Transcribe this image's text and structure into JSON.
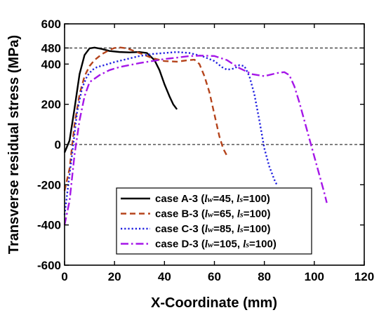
{
  "chart_data": {
    "type": "line",
    "xlabel": "X-Coordinate (mm)",
    "ylabel": "Transverse residual stress (MPa)",
    "xlim": [
      0,
      120
    ],
    "ylim": [
      -600,
      600
    ],
    "xticks": [
      0,
      20,
      40,
      60,
      80,
      100,
      120
    ],
    "yticks": [
      -600,
      -400,
      -200,
      0,
      200,
      400,
      480,
      600
    ],
    "xtick_labels": [
      "0",
      "20",
      "40",
      "60",
      "80",
      "100",
      "120"
    ],
    "ytick_labels": [
      "-600",
      "-400",
      "-200",
      "0",
      "200",
      "400",
      "480",
      "600"
    ],
    "reference_lines": [
      {
        "y": 480,
        "style": "dashed",
        "color": "#000000"
      },
      {
        "y": 0,
        "style": "dashed",
        "color": "#000000"
      }
    ],
    "legend_position": "bottom-right",
    "series": [
      {
        "name": "case A-3",
        "legend_lw": "45",
        "legend_ls": "100",
        "color": "#000000",
        "dash": "solid",
        "x": [
          0,
          2,
          4,
          6,
          8,
          10,
          12,
          15,
          18,
          22,
          26,
          30,
          33,
          36,
          38,
          40,
          42,
          43.5,
          45
        ],
        "y": [
          -40,
          20,
          180,
          350,
          445,
          478,
          482,
          475,
          465,
          460,
          458,
          460,
          455,
          420,
          370,
          300,
          240,
          200,
          175
        ]
      },
      {
        "name": "case B-3",
        "legend_lw": "65",
        "legend_ls": "100",
        "color": "#b5441c",
        "dash": "dashed",
        "x": [
          0,
          2,
          4,
          6,
          8,
          10,
          12,
          15,
          18,
          20,
          22,
          25,
          30,
          35,
          40,
          45,
          50,
          52,
          54,
          56,
          58,
          60,
          62,
          63.5,
          65
        ],
        "y": [
          -230,
          -120,
          100,
          250,
          340,
          390,
          420,
          450,
          470,
          480,
          483,
          478,
          455,
          430,
          415,
          412,
          420,
          422,
          400,
          340,
          260,
          150,
          40,
          -20,
          -55
        ]
      },
      {
        "name": "case C-3",
        "legend_lw": "85",
        "legend_ls": "100",
        "color": "#1f1fe0",
        "dash": "dotted",
        "x": [
          0,
          3,
          5,
          7,
          9,
          11,
          13,
          16,
          20,
          25,
          30,
          35,
          40,
          45,
          50,
          55,
          60,
          63,
          65,
          68,
          70,
          72,
          74,
          76,
          78,
          80,
          82,
          84,
          85
        ],
        "y": [
          -350,
          -50,
          160,
          280,
          340,
          370,
          385,
          395,
          410,
          425,
          440,
          450,
          455,
          460,
          455,
          440,
          415,
          385,
          372,
          378,
          395,
          390,
          340,
          250,
          120,
          -20,
          -110,
          -175,
          -200
        ]
      },
      {
        "name": "case D-3",
        "legend_lw": "105",
        "legend_ls": "100",
        "color": "#a516e8",
        "dash": "dashdot",
        "x": [
          0,
          2,
          4,
          6,
          8,
          10,
          14,
          18,
          22,
          26,
          30,
          35,
          40,
          45,
          50,
          55,
          60,
          65,
          70,
          75,
          80,
          85,
          88,
          90,
          92,
          94,
          96,
          98,
          100,
          102,
          104,
          105
        ],
        "y": [
          -400,
          -280,
          -50,
          120,
          240,
          310,
          345,
          370,
          385,
          395,
          405,
          415,
          425,
          432,
          440,
          442,
          440,
          420,
          380,
          350,
          340,
          355,
          360,
          345,
          290,
          210,
          120,
          30,
          -60,
          -150,
          -240,
          -290
        ]
      }
    ]
  }
}
